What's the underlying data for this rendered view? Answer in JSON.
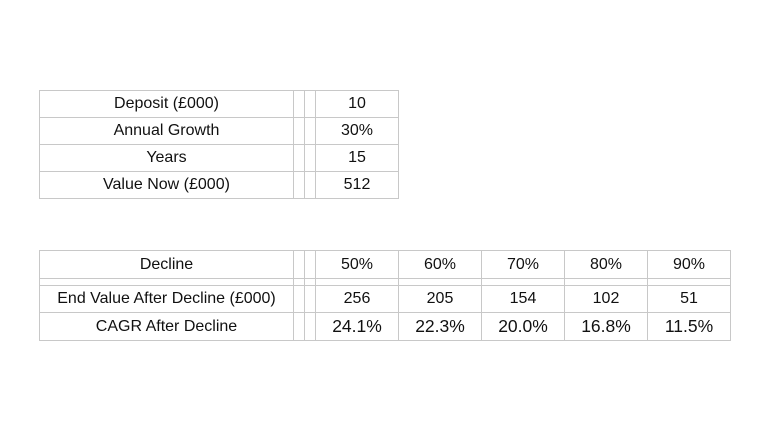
{
  "inputs": {
    "rows": [
      {
        "label": "Deposit (£000)",
        "value": "10"
      },
      {
        "label": "Annual Growth",
        "value": "30%"
      },
      {
        "label": "Years",
        "value": "15"
      },
      {
        "label": "Value Now (£000)",
        "value": "512"
      }
    ]
  },
  "decline": {
    "header_label": "Decline",
    "declines": [
      "50%",
      "60%",
      "70%",
      "80%",
      "90%"
    ],
    "end_value_label": "End Value After Decline (£000)",
    "end_values": [
      "256",
      "205",
      "154",
      "102",
      "51"
    ],
    "cagr_label": "CAGR After Decline",
    "cagr_values": [
      "24.1%",
      "22.3%",
      "20.0%",
      "16.8%",
      "11.5%"
    ]
  }
}
